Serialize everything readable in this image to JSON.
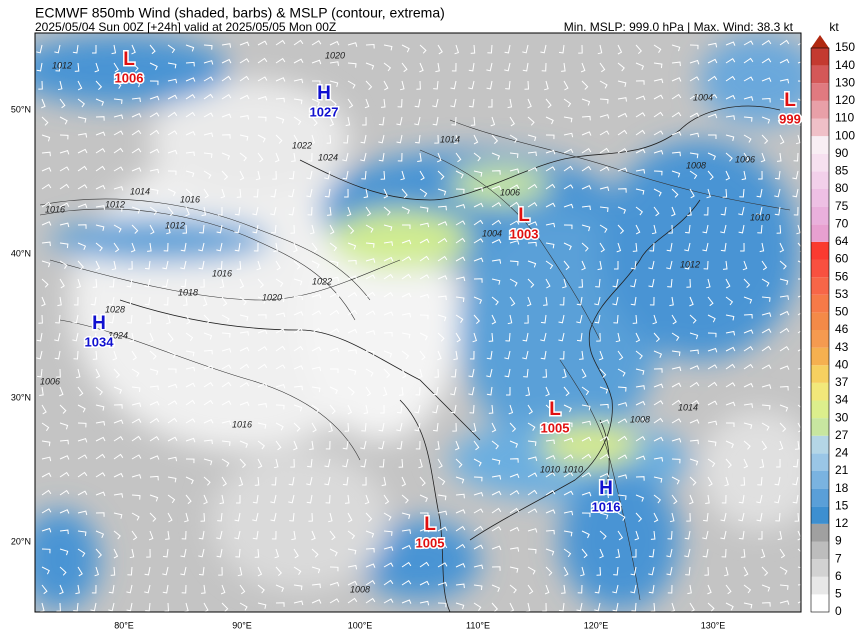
{
  "header": {
    "title": "ECMWF 850mb Wind (shaded, barbs) & MSLP (contour, extrema)",
    "subtitle_left": "2025/05/04 Sun 00Z [+24h] valid at 2025/05/05 Mon 00Z",
    "subtitle_right": "Min. MSLP: 999.0 hPa | Max. Wind: 38.3 kt"
  },
  "map": {
    "lat_labels": [
      "50°N",
      "40°N",
      "30°N",
      "20°N"
    ],
    "lon_labels": [
      "80°E",
      "90°E",
      "100°E",
      "110°E",
      "120°E",
      "130°E"
    ],
    "extrema": [
      {
        "letter": "L",
        "value": "1006"
      },
      {
        "letter": "H",
        "value": "1027"
      },
      {
        "letter": "L",
        "value": "999"
      },
      {
        "letter": "L",
        "value": "1003"
      },
      {
        "letter": "H",
        "value": "1034"
      },
      {
        "letter": "L",
        "value": "1005"
      },
      {
        "letter": "H",
        "value": "1016"
      },
      {
        "letter": "L",
        "value": "1005"
      }
    ],
    "contour_labels": [
      "1012",
      "1016",
      "1020",
      "1014",
      "1022",
      "1024",
      "1014",
      "1012",
      "1016",
      "1018",
      "1012",
      "1016",
      "1022",
      "1020",
      "1028",
      "1024",
      "1004",
      "1008",
      "1006",
      "1010",
      "1004",
      "1008",
      "1006",
      "1010",
      "1014",
      "1016",
      "1008",
      "1010",
      "1012",
      "1006"
    ]
  },
  "colorbar": {
    "unit": "kt",
    "levels": [
      0,
      5,
      6,
      7,
      9,
      12,
      15,
      18,
      21,
      24,
      27,
      30,
      34,
      37,
      40,
      43,
      46,
      50,
      53,
      56,
      60,
      64,
      70,
      75,
      80,
      85,
      90,
      100,
      110,
      120,
      130,
      140,
      150
    ],
    "colors": [
      "#ffffff",
      "#e8e8e8",
      "#d2d2d2",
      "#bdbdbd",
      "#a0a0a0",
      "#3d8fd0",
      "#5a9fd8",
      "#7ab3e0",
      "#9ac6e6",
      "#b4d6e6",
      "#c8e6a0",
      "#dcee8c",
      "#f2e87a",
      "#f6d060",
      "#f5b050",
      "#f59a50",
      "#f48a48",
      "#f67a48",
      "#f76648",
      "#f85040",
      "#fa3a30",
      "#e8a0d0",
      "#eab0dc",
      "#eec0e4",
      "#f2d0ea",
      "#f6e0f0",
      "#f8eef4",
      "#f0c0c8",
      "#e8a0a8",
      "#e07a80",
      "#d45858",
      "#c43a30"
    ],
    "extend_color": "#b02810"
  }
}
